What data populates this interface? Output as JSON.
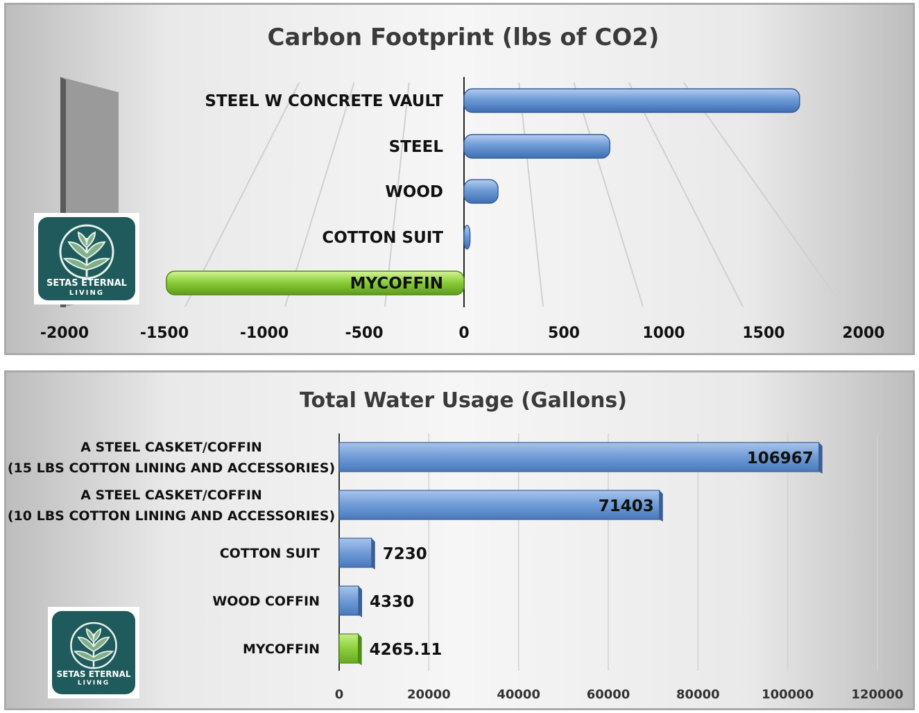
{
  "charts": [
    {
      "title": "Carbon Footprint (lbs of CO2)"
    },
    {
      "title": "Total Water Usage (Gallons)"
    }
  ],
  "logo": {
    "line1": "SETAS ETERNAL",
    "line2": "LIVING",
    "icon": "tree-leaf-icon"
  },
  "colors": {
    "bar_default": "#6f9bd6",
    "bar_highlight": "#8ccf3c"
  },
  "chart_data": [
    {
      "type": "bar",
      "orientation": "horizontal",
      "title": "Carbon Footprint (lbs of CO2)",
      "categories": [
        "STEEL W CONCRETE VAULT",
        "STEEL",
        "WOOD",
        "COTTON SUIT",
        "MYCOFFIN"
      ],
      "values": [
        1680,
        730,
        170,
        30,
        -1490
      ],
      "xlim": [
        -2000,
        2000
      ],
      "xticks": [
        "-2000",
        "-1500",
        "-1000",
        "-500",
        "0",
        "500",
        "1000",
        "1500",
        "2000"
      ],
      "grid": true,
      "highlight": "MYCOFFIN"
    },
    {
      "type": "bar",
      "orientation": "horizontal",
      "title": "Total Water Usage (Gallons)",
      "categories": [
        [
          "A STEEL CASKET/COFFIN",
          "(15 LBS COTTON LINING AND ACCESSORIES)"
        ],
        [
          "A STEEL CASKET/COFFIN",
          "(10 LBS COTTON LINING AND ACCESSORIES)"
        ],
        [
          "COTTON SUIT"
        ],
        [
          "WOOD COFFIN"
        ],
        [
          "MYCOFFIN"
        ]
      ],
      "values": [
        106967,
        71403,
        7230,
        4330,
        4265.11
      ],
      "data_labels": [
        "106967",
        "71403",
        "7230",
        "4330",
        "4265.11"
      ],
      "xlim": [
        0,
        120000
      ],
      "xticks": [
        "0",
        "20000",
        "40000",
        "60000",
        "80000",
        "100000",
        "120000"
      ],
      "grid": true,
      "highlight": "MYCOFFIN"
    }
  ]
}
